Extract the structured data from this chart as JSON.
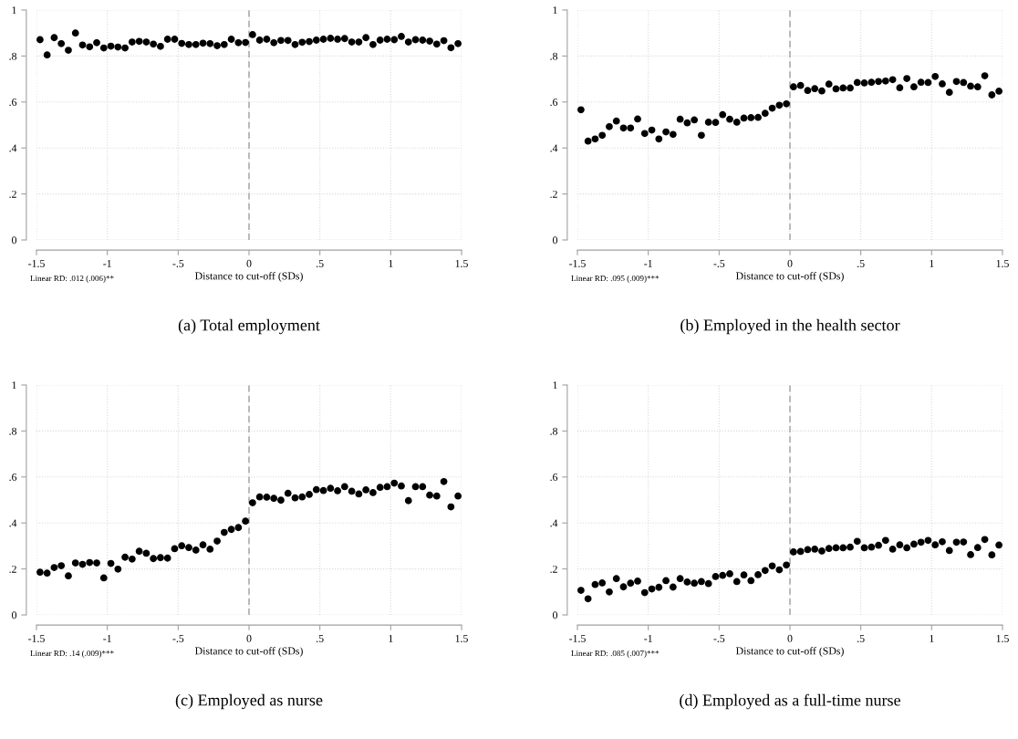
{
  "chart_data": [
    {
      "type": "scatter",
      "title": "(a) Total employment",
      "xlabel": "Distance to cut-off (SDs)",
      "annotations": [
        "Linear RD: .012 (.006)**"
      ],
      "x": [
        -1.475,
        -1.425,
        -1.375,
        -1.325,
        -1.275,
        -1.225,
        -1.175,
        -1.125,
        -1.075,
        -1.025,
        -0.975,
        -0.925,
        -0.875,
        -0.825,
        -0.775,
        -0.725,
        -0.675,
        -0.625,
        -0.575,
        -0.525,
        -0.475,
        -0.425,
        -0.375,
        -0.325,
        -0.275,
        -0.225,
        -0.175,
        -0.125,
        -0.075,
        -0.025,
        0.025,
        0.075,
        0.125,
        0.175,
        0.225,
        0.275,
        0.325,
        0.375,
        0.425,
        0.475,
        0.525,
        0.575,
        0.625,
        0.675,
        0.725,
        0.775,
        0.825,
        0.875,
        0.925,
        0.975,
        1.025,
        1.075,
        1.125,
        1.175,
        1.225,
        1.275,
        1.325,
        1.375,
        1.425,
        1.475
      ],
      "series": [
        {
          "color": "#000000",
          "values": [
            0.871,
            0.805,
            0.88,
            0.854,
            0.825,
            0.9,
            0.848,
            0.84,
            0.858,
            0.835,
            0.843,
            0.839,
            0.835,
            0.861,
            0.864,
            0.861,
            0.852,
            0.842,
            0.873,
            0.873,
            0.855,
            0.85,
            0.85,
            0.856,
            0.854,
            0.845,
            0.85,
            0.873,
            0.858,
            0.859,
            0.893,
            0.869,
            0.873,
            0.858,
            0.868,
            0.868,
            0.85,
            0.86,
            0.863,
            0.869,
            0.873,
            0.877,
            0.873,
            0.876,
            0.861,
            0.861,
            0.88,
            0.85,
            0.869,
            0.873,
            0.871,
            0.885,
            0.861,
            0.871,
            0.869,
            0.865,
            0.852,
            0.867,
            0.836,
            0.854
          ]
        }
      ],
      "xlim": [
        -1.5,
        1.5
      ],
      "xticks": [
        {
          "value": -1.5,
          "label": "-1.5"
        },
        {
          "value": -1,
          "label": "-1"
        },
        {
          "value": -0.5,
          "label": "-.5"
        },
        0,
        {
          "value": 0.5,
          "label": ".5"
        },
        1,
        1.5
      ],
      "ylim": [
        0,
        1
      ],
      "yticks": [
        0,
        {
          "value": 0.2,
          "label": ".2"
        },
        {
          "value": 0.4,
          "label": ".4"
        },
        {
          "value": 0.6,
          "label": ".6"
        },
        {
          "value": 0.8,
          "label": ".8"
        },
        1
      ],
      "grid": true,
      "marker": "circle",
      "ref_lines": [
        {
          "axis": "x",
          "value": 0,
          "color": "#a0a0a0",
          "line_style": "dashed"
        }
      ]
    },
    {
      "type": "scatter",
      "title": "(b) Employed in the health sector",
      "xlabel": "Distance to cut-off (SDs)",
      "annotations": [
        "Linear RD: .095 (.009)***"
      ],
      "x": [
        -1.475,
        -1.425,
        -1.375,
        -1.325,
        -1.275,
        -1.225,
        -1.175,
        -1.125,
        -1.075,
        -1.025,
        -0.975,
        -0.925,
        -0.875,
        -0.825,
        -0.775,
        -0.725,
        -0.675,
        -0.625,
        -0.575,
        -0.525,
        -0.475,
        -0.425,
        -0.375,
        -0.325,
        -0.275,
        -0.225,
        -0.175,
        -0.125,
        -0.075,
        -0.025,
        0.025,
        0.075,
        0.125,
        0.175,
        0.225,
        0.275,
        0.325,
        0.375,
        0.425,
        0.475,
        0.525,
        0.575,
        0.625,
        0.675,
        0.725,
        0.775,
        0.825,
        0.875,
        0.925,
        0.975,
        1.025,
        1.075,
        1.125,
        1.175,
        1.225,
        1.275,
        1.325,
        1.375,
        1.425,
        1.475
      ],
      "series": [
        {
          "color": "#000000",
          "values": [
            0.566,
            0.43,
            0.439,
            0.455,
            0.493,
            0.517,
            0.487,
            0.487,
            0.526,
            0.463,
            0.478,
            0.439,
            0.47,
            0.459,
            0.525,
            0.509,
            0.522,
            0.455,
            0.512,
            0.511,
            0.545,
            0.525,
            0.512,
            0.53,
            0.532,
            0.533,
            0.551,
            0.573,
            0.586,
            0.592,
            0.666,
            0.672,
            0.65,
            0.658,
            0.648,
            0.678,
            0.657,
            0.661,
            0.661,
            0.685,
            0.683,
            0.686,
            0.689,
            0.691,
            0.697,
            0.662,
            0.702,
            0.666,
            0.686,
            0.685,
            0.711,
            0.679,
            0.642,
            0.689,
            0.685,
            0.669,
            0.666,
            0.714,
            0.631,
            0.647
          ]
        }
      ],
      "xlim": [
        -1.5,
        1.5
      ],
      "xticks": [
        {
          "value": -1.5,
          "label": "-1.5"
        },
        {
          "value": -1,
          "label": "-1"
        },
        {
          "value": -0.5,
          "label": "-.5"
        },
        0,
        {
          "value": 0.5,
          "label": ".5"
        },
        1,
        1.5
      ],
      "ylim": [
        0,
        1
      ],
      "yticks": [
        0,
        {
          "value": 0.2,
          "label": ".2"
        },
        {
          "value": 0.4,
          "label": ".4"
        },
        {
          "value": 0.6,
          "label": ".6"
        },
        {
          "value": 0.8,
          "label": ".8"
        },
        1
      ],
      "grid": true,
      "marker": "circle",
      "ref_lines": [
        {
          "axis": "x",
          "value": 0,
          "color": "#a0a0a0",
          "line_style": "dashed"
        }
      ]
    },
    {
      "type": "scatter",
      "title": "(c) Employed as nurse",
      "xlabel": "Distance to cut-off (SDs)",
      "annotations": [
        "Linear RD: .14 (.009)***"
      ],
      "x": [
        -1.475,
        -1.425,
        -1.375,
        -1.325,
        -1.275,
        -1.225,
        -1.175,
        -1.125,
        -1.075,
        -1.025,
        -0.975,
        -0.925,
        -0.875,
        -0.825,
        -0.775,
        -0.725,
        -0.675,
        -0.625,
        -0.575,
        -0.525,
        -0.475,
        -0.425,
        -0.375,
        -0.325,
        -0.275,
        -0.225,
        -0.175,
        -0.125,
        -0.075,
        -0.025,
        0.025,
        0.075,
        0.125,
        0.175,
        0.225,
        0.275,
        0.325,
        0.375,
        0.425,
        0.475,
        0.525,
        0.575,
        0.625,
        0.675,
        0.725,
        0.775,
        0.825,
        0.875,
        0.925,
        0.975,
        1.025,
        1.075,
        1.125,
        1.175,
        1.225,
        1.275,
        1.325,
        1.375,
        1.425,
        1.475
      ],
      "series": [
        {
          "color": "#000000",
          "values": [
            0.186,
            0.182,
            0.206,
            0.214,
            0.17,
            0.226,
            0.22,
            0.228,
            0.226,
            0.161,
            0.224,
            0.199,
            0.251,
            0.243,
            0.277,
            0.268,
            0.245,
            0.249,
            0.247,
            0.288,
            0.301,
            0.293,
            0.282,
            0.305,
            0.286,
            0.321,
            0.359,
            0.372,
            0.38,
            0.408,
            0.488,
            0.513,
            0.512,
            0.507,
            0.499,
            0.529,
            0.509,
            0.513,
            0.524,
            0.545,
            0.541,
            0.551,
            0.54,
            0.558,
            0.538,
            0.526,
            0.544,
            0.532,
            0.555,
            0.558,
            0.573,
            0.561,
            0.497,
            0.558,
            0.558,
            0.521,
            0.517,
            0.58,
            0.47,
            0.517
          ]
        }
      ],
      "xlim": [
        -1.5,
        1.5
      ],
      "xticks": [
        {
          "value": -1.5,
          "label": "-1.5"
        },
        {
          "value": -1,
          "label": "-1"
        },
        {
          "value": -0.5,
          "label": "-.5"
        },
        0,
        {
          "value": 0.5,
          "label": ".5"
        },
        1,
        1.5
      ],
      "ylim": [
        0,
        1
      ],
      "yticks": [
        0,
        {
          "value": 0.2,
          "label": ".2"
        },
        {
          "value": 0.4,
          "label": ".4"
        },
        {
          "value": 0.6,
          "label": ".6"
        },
        {
          "value": 0.8,
          "label": ".8"
        },
        1
      ],
      "grid": true,
      "marker": "circle",
      "ref_lines": [
        {
          "axis": "x",
          "value": 0,
          "color": "#a0a0a0",
          "line_style": "dashed"
        }
      ]
    },
    {
      "type": "scatter",
      "title": "(d) Employed as a full-time nurse",
      "xlabel": "Distance to cut-off (SDs)",
      "annotations": [
        "Linear RD: .085 (.007)***"
      ],
      "x": [
        -1.475,
        -1.425,
        -1.375,
        -1.325,
        -1.275,
        -1.225,
        -1.175,
        -1.125,
        -1.075,
        -1.025,
        -0.975,
        -0.925,
        -0.875,
        -0.825,
        -0.775,
        -0.725,
        -0.675,
        -0.625,
        -0.575,
        -0.525,
        -0.475,
        -0.425,
        -0.375,
        -0.325,
        -0.275,
        -0.225,
        -0.175,
        -0.125,
        -0.075,
        -0.025,
        0.025,
        0.075,
        0.125,
        0.175,
        0.225,
        0.275,
        0.325,
        0.375,
        0.425,
        0.475,
        0.525,
        0.575,
        0.625,
        0.675,
        0.725,
        0.775,
        0.825,
        0.875,
        0.925,
        0.975,
        1.025,
        1.075,
        1.125,
        1.175,
        1.225,
        1.275,
        1.325,
        1.375,
        1.425,
        1.475
      ],
      "series": [
        {
          "color": "#000000",
          "values": [
            0.107,
            0.07,
            0.132,
            0.139,
            0.1,
            0.158,
            0.122,
            0.138,
            0.147,
            0.097,
            0.113,
            0.12,
            0.149,
            0.121,
            0.158,
            0.143,
            0.138,
            0.145,
            0.136,
            0.167,
            0.172,
            0.179,
            0.145,
            0.174,
            0.149,
            0.175,
            0.193,
            0.213,
            0.196,
            0.217,
            0.274,
            0.276,
            0.284,
            0.286,
            0.278,
            0.289,
            0.292,
            0.292,
            0.295,
            0.32,
            0.292,
            0.295,
            0.303,
            0.324,
            0.286,
            0.305,
            0.292,
            0.308,
            0.316,
            0.324,
            0.305,
            0.318,
            0.28,
            0.316,
            0.317,
            0.262,
            0.293,
            0.328,
            0.261,
            0.304
          ]
        }
      ],
      "xlim": [
        -1.5,
        1.5
      ],
      "xticks": [
        {
          "value": -1.5,
          "label": "-1.5"
        },
        {
          "value": -1,
          "label": "-1"
        },
        {
          "value": -0.5,
          "label": "-.5"
        },
        0,
        {
          "value": 0.5,
          "label": ".5"
        },
        1,
        1.5
      ],
      "ylim": [
        0,
        1
      ],
      "yticks": [
        0,
        {
          "value": 0.2,
          "label": ".2"
        },
        {
          "value": 0.4,
          "label": ".4"
        },
        {
          "value": 0.6,
          "label": ".6"
        },
        {
          "value": 0.8,
          "label": ".8"
        },
        1
      ],
      "grid": true,
      "marker": "circle",
      "ref_lines": [
        {
          "axis": "x",
          "value": 0,
          "color": "#a0a0a0",
          "line_style": "dashed"
        }
      ]
    }
  ]
}
